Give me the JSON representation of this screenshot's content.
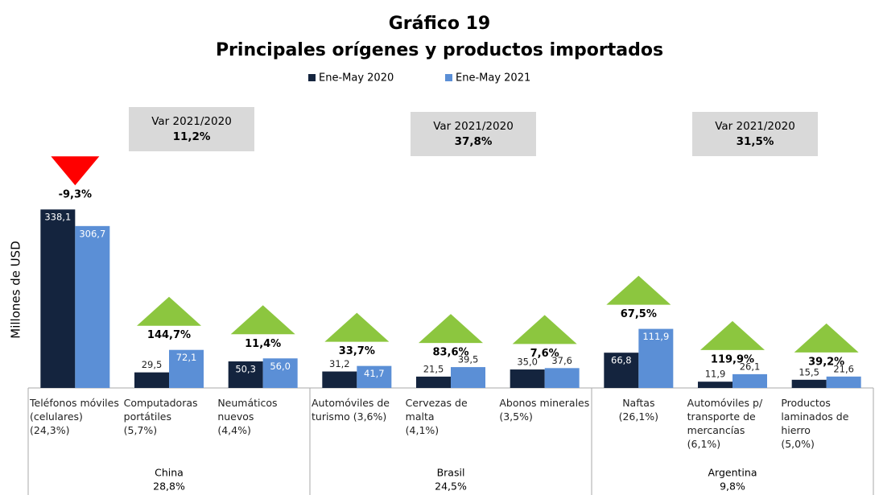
{
  "chart_data": {
    "type": "bar",
    "title": "Gráfico 19",
    "subtitle": "Principales orígenes y productos importados",
    "y_label": "Millones de USD",
    "categories": [
      "Teléfonos móviles\n(celulares)\n(24,3%)",
      "Computadoras\nportátiles\n(5,7%)",
      "Neumáticos\nnuevos\n(4,4%)",
      "Automóviles de\nturismo (3,6%)",
      "Cervezas de malta\n(4,1%)",
      "Abonos minerales\n(3,5%)",
      "Naftas\n(26,1%)",
      "Automóviles p/\ntransporte de\nmercancías (6,1%)",
      "Productos\nlaminados de\nhierro\n(5,0%)"
    ],
    "series": [
      {
        "name": "Ene-May 2020",
        "color": "#14243e",
        "values": [
          338.1,
          29.5,
          50.3,
          31.2,
          21.5,
          35.0,
          66.8,
          11.9,
          15.5
        ],
        "value_labels": [
          "338,1",
          "29,5",
          "50,3",
          "31,2",
          "21,5",
          "35,0",
          "66,8",
          "11,9",
          "15,5"
        ]
      },
      {
        "name": "Ene-May 2021",
        "color": "#5b8fd6",
        "values": [
          306.7,
          72.1,
          56.0,
          41.7,
          39.5,
          37.6,
          111.9,
          26.1,
          21.6
        ],
        "value_labels": [
          "306,7",
          "72,1",
          "56,0",
          "41,7",
          "39,5",
          "37,6",
          "111,9",
          "26,1",
          "21,6"
        ]
      }
    ],
    "changes": [
      -9.3,
      144.7,
      11.4,
      33.7,
      83.6,
      7.6,
      67.5,
      119.9,
      39.2
    ],
    "change_labels": [
      "-9,3%",
      "144,7%",
      "11,4%",
      "33,7%",
      "83,6%",
      "7,6%",
      "67,5%",
      "119,9%",
      "39,2%"
    ],
    "up_color": "#8cc63f",
    "down_color": "#ff0000",
    "groups": [
      {
        "name": "China",
        "count": 3,
        "share": 28.8,
        "share_label": "28,8%",
        "var_title": "Var 2021/2020",
        "var": 11.2,
        "var_label": "11,2%"
      },
      {
        "name": "Brasil",
        "count": 3,
        "share": 24.5,
        "share_label": "24,5%",
        "var_title": "Var 2021/2020",
        "var": 37.8,
        "var_label": "37,8%"
      },
      {
        "name": "Argentina",
        "count": 3,
        "share": 9.8,
        "share_label": "9,8%",
        "var_title": "Var 2021/2020",
        "var": 31.5,
        "var_label": "31,5%"
      }
    ],
    "ylim": [
      0,
      340
    ]
  }
}
